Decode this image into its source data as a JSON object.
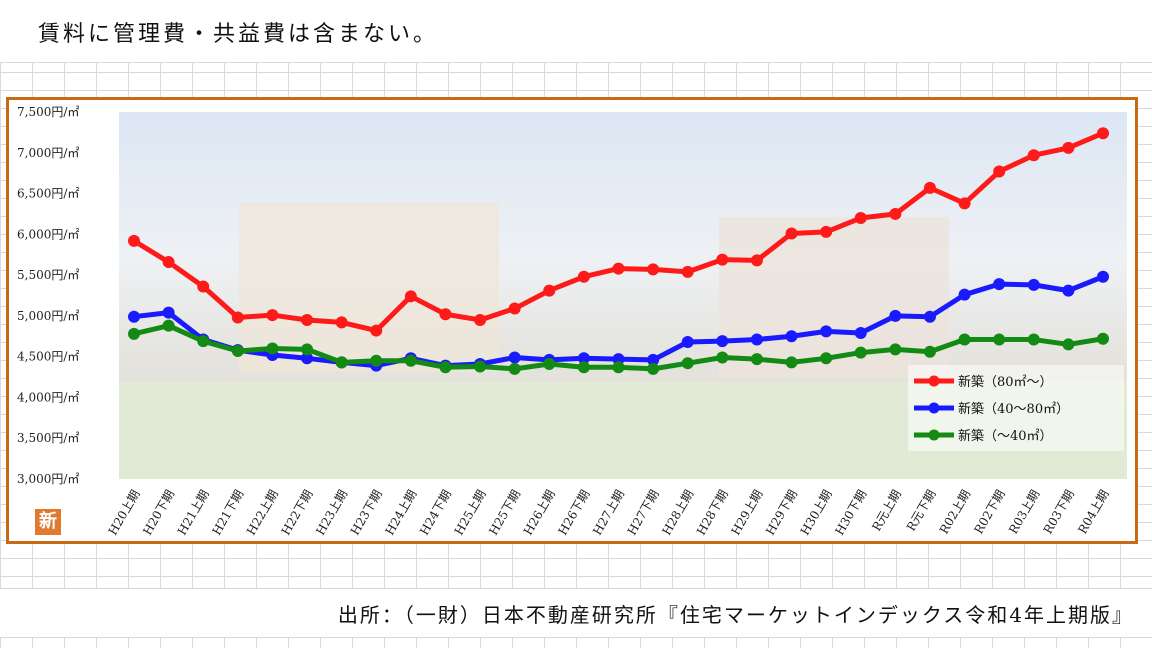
{
  "note": "賃料に管理費・共益費は含まない。",
  "source": "出所：（一財）日本不動産研究所『住宅マーケットインデックス令和4年上期版』",
  "badge": "新",
  "colors": {
    "frame": "#c76a14",
    "red": "#ff1a1a",
    "blue": "#1a1aff",
    "green": "#138a13"
  },
  "chart_data": {
    "type": "line",
    "title": "",
    "xlabel": "",
    "ylabel": "",
    "ylim": [
      3000,
      7500
    ],
    "y_ticks": [
      7500,
      7000,
      6500,
      6000,
      5500,
      5000,
      4500,
      4000,
      3500,
      3000
    ],
    "y_tick_suffix": "円/㎡",
    "grid": false,
    "legend_position": "bottom-right",
    "categories": [
      "H20上期",
      "H20下期",
      "H21上期",
      "H21下期",
      "H22上期",
      "H22下期",
      "H23上期",
      "H23下期",
      "H24上期",
      "H24下期",
      "H25上期",
      "H25下期",
      "H26上期",
      "H26下期",
      "H27上期",
      "H27下期",
      "H28上期",
      "H28下期",
      "H29上期",
      "H29下期",
      "H30上期",
      "H30下期",
      "R元上期",
      "R元下期",
      "R02上期",
      "R02下期",
      "R03上期",
      "R03下期",
      "R04上期"
    ],
    "series": [
      {
        "name": "新築（80㎡～）",
        "color": "#ff1a1a",
        "values": [
          5920,
          5660,
          5360,
          4980,
          5010,
          4950,
          4920,
          4820,
          5240,
          5020,
          4950,
          5090,
          5310,
          5480,
          5580,
          5570,
          5540,
          5690,
          5680,
          6010,
          6030,
          6200,
          6250,
          6570,
          6380,
          6770,
          6970,
          7060,
          7240
        ]
      },
      {
        "name": "新築（40～80㎡）",
        "color": "#1a1aff",
        "values": [
          4990,
          5040,
          4710,
          4580,
          4520,
          4480,
          4430,
          4390,
          4480,
          4390,
          4410,
          4490,
          4460,
          4480,
          4470,
          4460,
          4680,
          4690,
          4710,
          4750,
          4810,
          4790,
          5000,
          4990,
          5260,
          5390,
          5380,
          5310,
          5480
        ]
      },
      {
        "name": "新築（～40㎡）",
        "color": "#138a13",
        "values": [
          4780,
          4880,
          4690,
          4570,
          4600,
          4590,
          4430,
          4450,
          4450,
          4370,
          4380,
          4350,
          4410,
          4370,
          4370,
          4350,
          4420,
          4490,
          4470,
          4430,
          4480,
          4550,
          4590,
          4560,
          4710,
          4710,
          4710,
          4650,
          4720
        ]
      }
    ]
  }
}
